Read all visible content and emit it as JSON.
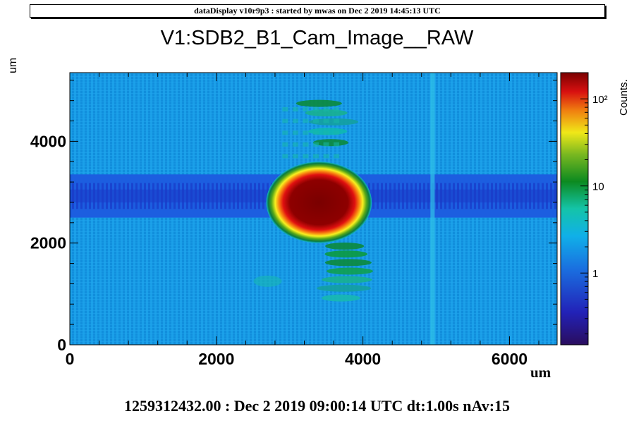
{
  "header": {
    "text": "dataDisplay v10r9p3 : started by mwas on Dec  2 2019 14:45:13 UTC"
  },
  "footer": {
    "text": "1259312432.00 : Dec  2 2019 09:00:14 UTC dt:1.00s nAv:15"
  },
  "colors": {
    "frame": "#000000",
    "background_level": "#1a9fe8",
    "hot_core": "#7a0000"
  },
  "chart_data": {
    "type": "heatmap",
    "title": "V1:SDB2_B1_Cam_Image__RAW",
    "xlabel": "um",
    "ylabel": "um",
    "zlabel": "Counts.",
    "xlim": [
      0,
      6650
    ],
    "ylim": [
      0,
      5350
    ],
    "zscale": "log",
    "zlim": [
      0.15,
      200
    ],
    "x_ticks": [
      {
        "value": 0,
        "label": "0"
      },
      {
        "value": 2000,
        "label": "2000"
      },
      {
        "value": 4000,
        "label": "4000"
      },
      {
        "value": 6000,
        "label": "6000"
      }
    ],
    "y_ticks": [
      {
        "value": 0,
        "label": "0"
      },
      {
        "value": 2000,
        "label": "2000"
      },
      {
        "value": 4000,
        "label": "4000"
      }
    ],
    "z_ticks": [
      {
        "value": 1,
        "label": "1"
      },
      {
        "value": 10,
        "label": "10"
      },
      {
        "value": 100,
        "label": "10²"
      }
    ],
    "features": [
      {
        "name": "main-spot",
        "x": 3400,
        "y": 2800,
        "rx": 720,
        "ry": 800,
        "peak": 180
      },
      {
        "name": "horizontal-dark-band",
        "y_from": 2500,
        "y_to": 3350,
        "level": 0.5
      },
      {
        "name": "upper-fringes",
        "x": 3600,
        "y_from": 3700,
        "y_to": 4800
      },
      {
        "name": "lower-fringes",
        "x": 3800,
        "y_from": 800,
        "y_to": 2000
      },
      {
        "name": "vertical-line",
        "x": 4950
      }
    ],
    "background_level": 2.5
  }
}
